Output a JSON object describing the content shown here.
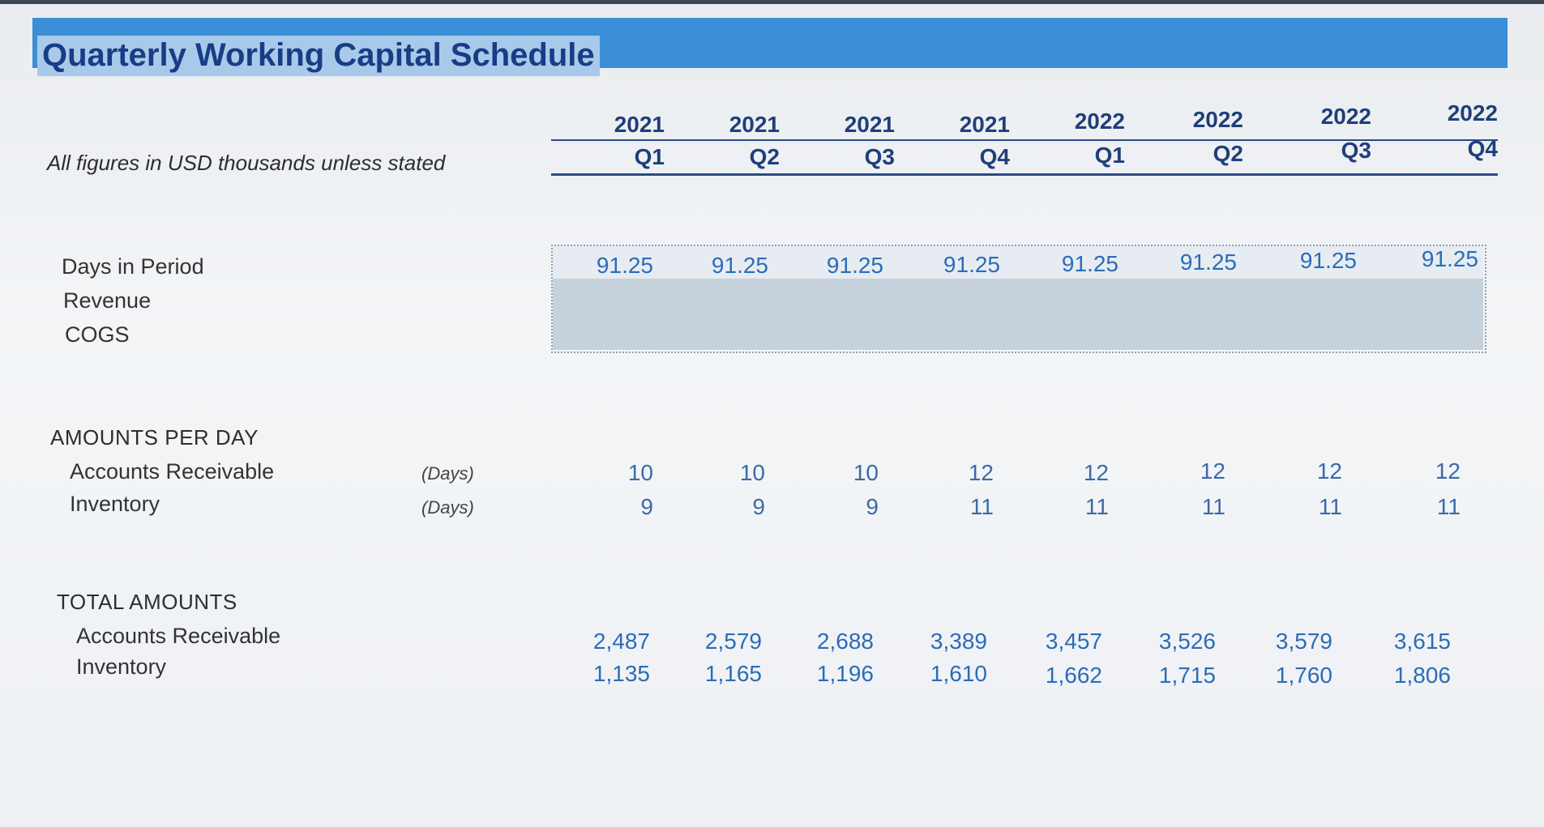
{
  "title": "Quarterly Working Capital Schedule",
  "subtitle": "All figures in USD thousands unless stated",
  "columns": [
    {
      "year": "2021",
      "quarter": "Q1"
    },
    {
      "year": "2021",
      "quarter": "Q2"
    },
    {
      "year": "2021",
      "quarter": "Q3"
    },
    {
      "year": "2021",
      "quarter": "Q4"
    },
    {
      "year": "2022",
      "quarter": "Q1"
    },
    {
      "year": "2022",
      "quarter": "Q2"
    },
    {
      "year": "2022",
      "quarter": "Q3"
    },
    {
      "year": "2022",
      "quarter": "Q4"
    }
  ],
  "inputs": {
    "days_label": "Days in Period",
    "revenue_label": "Revenue",
    "cogs_label": "COGS",
    "days": [
      "91.25",
      "91.25",
      "91.25",
      "91.25",
      "91.25",
      "91.25",
      "91.25",
      "91.25"
    ]
  },
  "amounts_per_day": {
    "heading": "AMOUNTS PER DAY",
    "ar_label": "Accounts Receivable",
    "inv_label": "Inventory",
    "unit": "(Days)",
    "ar": [
      "10",
      "10",
      "10",
      "12",
      "12",
      "12",
      "12",
      "12"
    ],
    "inv": [
      "9",
      "9",
      "9",
      "11",
      "11",
      "11",
      "11",
      "11"
    ]
  },
  "total_amounts": {
    "heading": "TOTAL AMOUNTS",
    "ar_label": "Accounts Receivable",
    "inv_label": "Inventory",
    "ar": [
      "2,487",
      "2,579",
      "2,688",
      "3,389",
      "3,457",
      "3,526",
      "3,579",
      "3,615"
    ],
    "inv": [
      "1,135",
      "1,165",
      "1,196",
      "1,610",
      "1,662",
      "1,715",
      "1,760",
      "1,806"
    ]
  },
  "colors": {
    "title_bar": "#3b8fd6",
    "title_text": "#173d86",
    "value_text": "#2b6cb8",
    "input_shade": "#c6d2db"
  }
}
